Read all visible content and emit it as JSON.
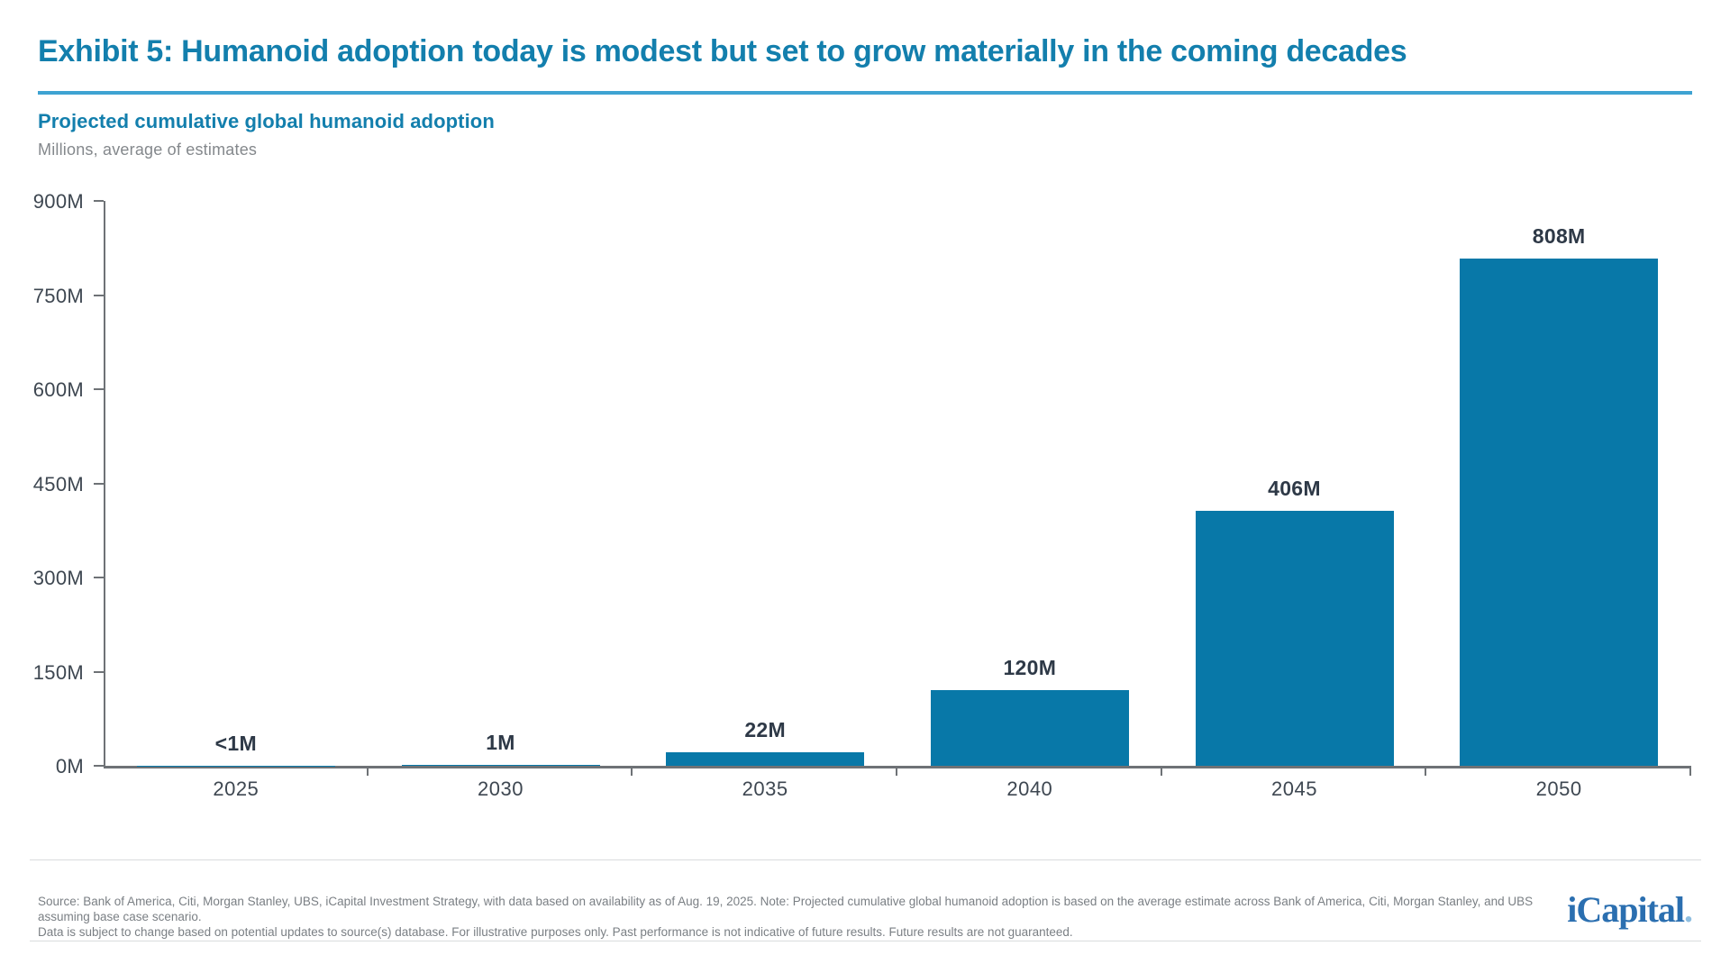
{
  "header": {
    "title": "Exhibit 5: Humanoid adoption today is modest but set to grow materially in the coming decades",
    "subtitle": "Projected cumulative global humanoid adoption",
    "units": "Millions, average of estimates"
  },
  "chart_data": {
    "type": "bar",
    "title": "Projected cumulative global humanoid adoption",
    "subtitle": "Millions, average of estimates",
    "categories": [
      "2025",
      "2030",
      "2035",
      "2040",
      "2045",
      "2050"
    ],
    "values": [
      0.5,
      1,
      22,
      120,
      406,
      808
    ],
    "value_labels": [
      "<1M",
      "1M",
      "22M",
      "120M",
      "406M",
      "808M"
    ],
    "xlabel": "",
    "ylabel": "Millions",
    "ylim": [
      0,
      900
    ],
    "ytick_step": 150,
    "ytick_labels": [
      "900M",
      "750M",
      "600M",
      "450M",
      "300M",
      "150M",
      "0M"
    ],
    "grid": false,
    "legend": "none",
    "bar_color": "#0878A8"
  },
  "footer": {
    "line1": "Source: Bank of America, Citi, Morgan Stanley, UBS, iCapital Investment Strategy, with data based on availability as of Aug. 19, 2025. Note: Projected cumulative global humanoid adoption is based on the average estimate across Bank of America, Citi, Morgan Stanley, and UBS assuming base case scenario.",
    "line2": "Data is subject to change based on potential updates to source(s) database. For illustrative purposes only. Past performance is not indicative of future results. Future results are not guaranteed.",
    "logo_text": "iCapital",
    "logo_period": "."
  },
  "colors": {
    "title_teal": "#137FAD",
    "title_rule_blue": "#3EA3D2",
    "bar_blue": "#0878A8",
    "data_label_navy": "#2E3947",
    "axis_gray": "#6E7276",
    "tick_label_gray": "#3E4751",
    "units_gray": "#84888C",
    "footnote_gray": "#7A7F84",
    "divider_gray": "#DADCDD",
    "logo_blue": "#2B6FB0"
  }
}
